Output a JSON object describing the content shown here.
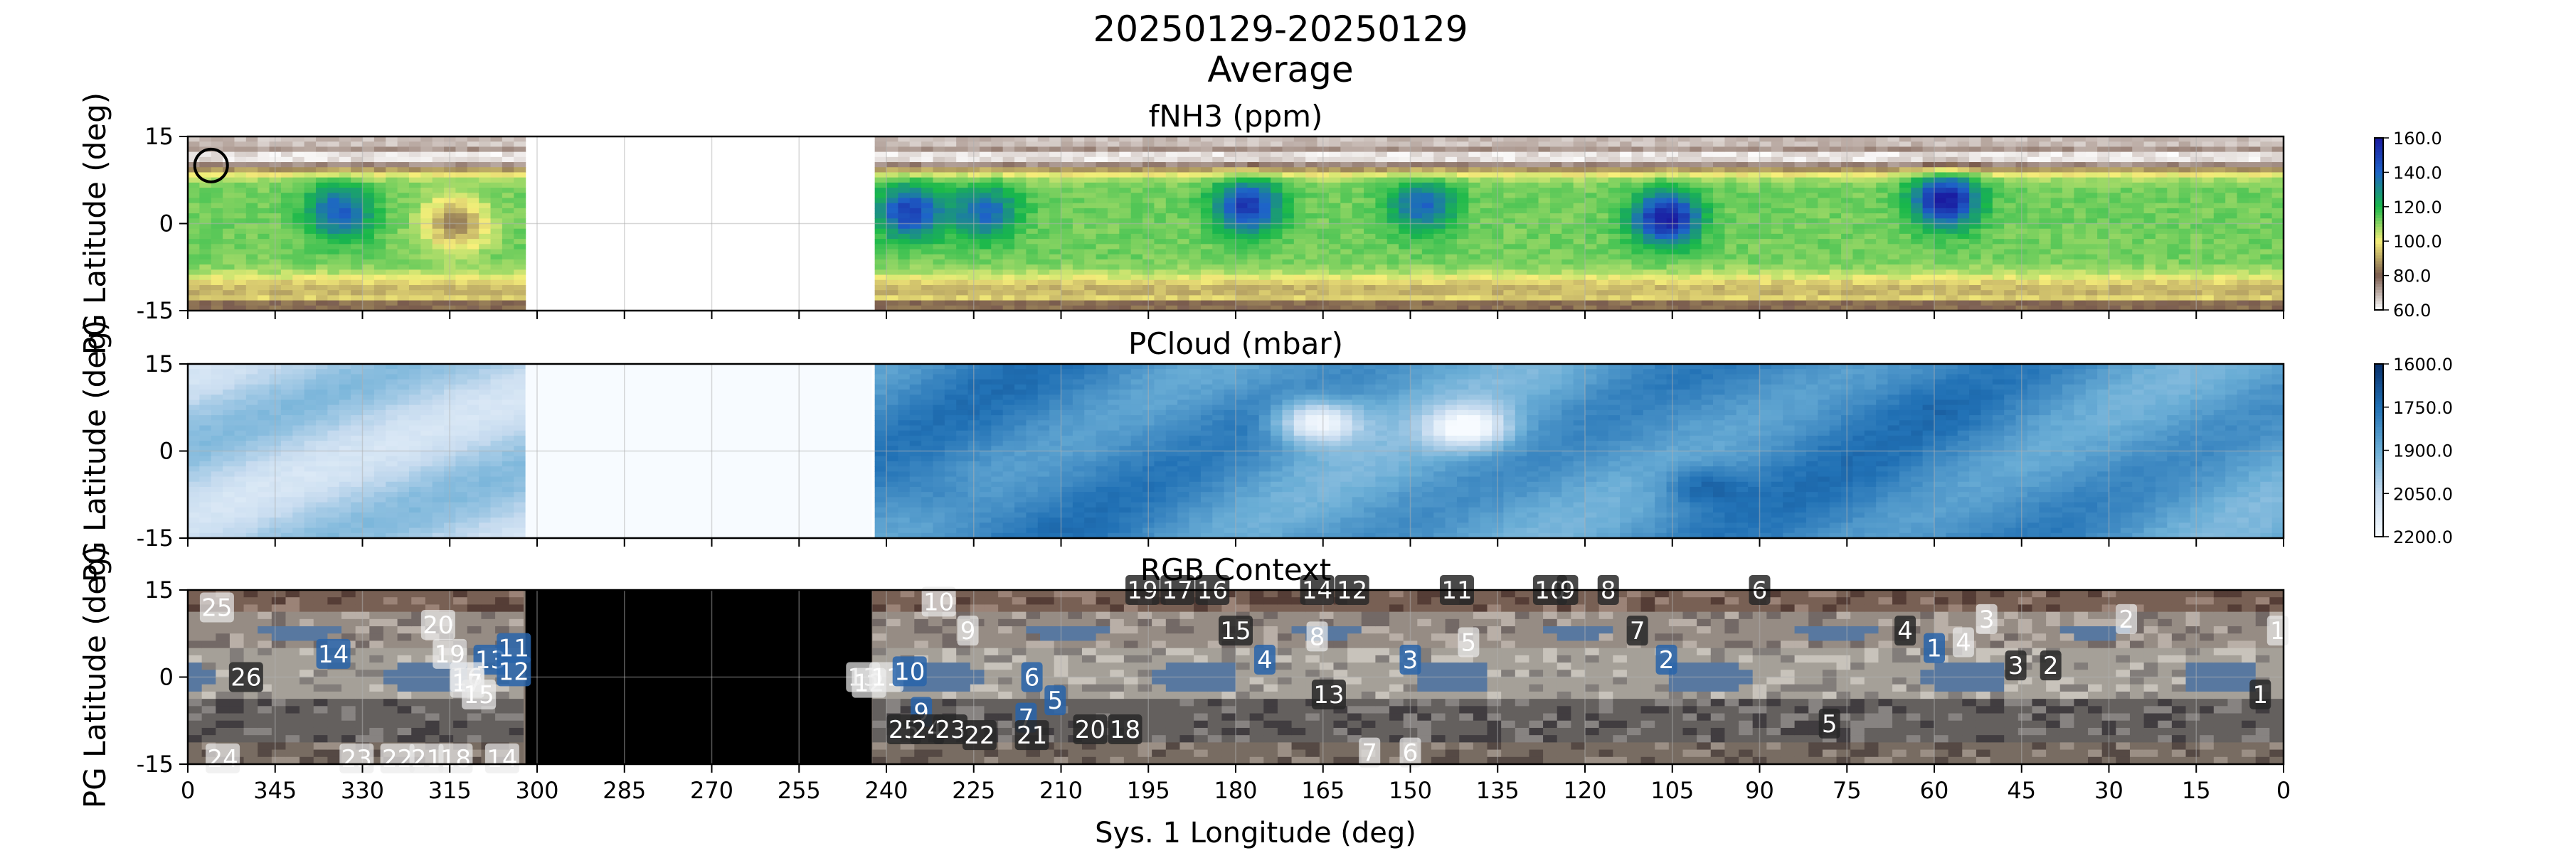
{
  "title": "20250129-20250129",
  "subtitle": "Average",
  "xlabel": "Sys. 1 Longitude (deg)",
  "chart_data": [
    {
      "type": "heatmap",
      "title": "fNH3 (ppm)",
      "ylabel": "PG Latitude (deg)",
      "xlim": [
        360,
        0
      ],
      "ylim": [
        -15,
        15
      ],
      "x_ticks": [
        "0",
        "345",
        "330",
        "315",
        "300",
        "285",
        "270",
        "255",
        "240",
        "225",
        "210",
        "195",
        "180",
        "165",
        "150",
        "135",
        "120",
        "105",
        "90",
        "75",
        "60",
        "45",
        "30",
        "15",
        "0"
      ],
      "y_ticks": [
        "15",
        "0",
        "-15"
      ],
      "colorbar_ticks": [
        "160.0",
        "140.0",
        "120.0",
        "100.0",
        "80.0",
        "60.0"
      ],
      "colorbar_range": [
        60,
        160
      ],
      "colormap": [
        "#ffffff",
        "#7a5c4e",
        "#f7ef7a",
        "#19b84a",
        "#1e64c8",
        "#1a1aa0"
      ],
      "no_data_longitudes": [
        242.5,
        302
      ],
      "grid": true,
      "marker": {
        "lon": 356,
        "lat": 10,
        "shape": "circle"
      },
      "bands": {
        "upper_lat": 11.5,
        "mid_lat": 0,
        "lower_lat": -11.5
      },
      "features": [
        {
          "lon": 334,
          "lat": 2,
          "level": 142
        },
        {
          "lon": 314,
          "lat": 0,
          "level": 85
        },
        {
          "lon": 236,
          "lat": 2,
          "level": 150
        },
        {
          "lon": 223,
          "lat": 2,
          "level": 140
        },
        {
          "lon": 178,
          "lat": 3,
          "level": 152
        },
        {
          "lon": 148,
          "lat": 3,
          "level": 140
        },
        {
          "lon": 106,
          "lat": 1,
          "level": 160
        },
        {
          "lon": 58,
          "lat": 4,
          "level": 160
        }
      ]
    },
    {
      "type": "heatmap",
      "title": "PCloud (mbar)",
      "ylabel": "PG Latitude (deg)",
      "xlim": [
        360,
        0
      ],
      "ylim": [
        -15,
        15
      ],
      "x_ticks": [
        "0",
        "345",
        "330",
        "315",
        "300",
        "285",
        "270",
        "255",
        "240",
        "225",
        "210",
        "195",
        "180",
        "165",
        "150",
        "135",
        "120",
        "105",
        "90",
        "75",
        "60",
        "45",
        "30",
        "15",
        "0"
      ],
      "y_ticks": [
        "15",
        "0",
        "-15"
      ],
      "colorbar_ticks": [
        "1600.0",
        "1750.0",
        "1900.0",
        "2050.0",
        "2200.0"
      ],
      "colorbar_range": [
        1600,
        2200
      ],
      "colormap": [
        "#f7fbff",
        "#c6dbef",
        "#6baed6",
        "#2171b5",
        "#08306b"
      ],
      "no_data_longitudes": [
        242.5,
        302
      ],
      "grid": true,
      "features": [
        {
          "lon": 178,
          "lat": 6,
          "level": 1980
        },
        {
          "lon": 166,
          "lat": 5,
          "level": 1600
        },
        {
          "lon": 140,
          "lat": 4,
          "level": 1620
        },
        {
          "lon": 106,
          "lat": 6,
          "level": 1950
        },
        {
          "lon": 58,
          "lat": 7,
          "level": 1980
        },
        {
          "lon": 100,
          "lat": -6,
          "level": 2080
        },
        {
          "lon": 230,
          "lat": -8,
          "level": 2000
        }
      ]
    },
    {
      "type": "heatmap",
      "title": "RGB Context",
      "ylabel": "PG Latitude (deg)",
      "xlim": [
        360,
        0
      ],
      "ylim": [
        -15,
        15
      ],
      "x_ticks": [
        "0",
        "345",
        "330",
        "315",
        "300",
        "285",
        "270",
        "255",
        "240",
        "225",
        "210",
        "195",
        "180",
        "165",
        "150",
        "135",
        "120",
        "105",
        "90",
        "75",
        "60",
        "45",
        "30",
        "15",
        "0"
      ],
      "y_ticks": [
        "15",
        "0",
        "-15"
      ],
      "no_data_longitudes": [
        242.5,
        302
      ],
      "grid": true,
      "labels": [
        {
          "text": "25",
          "lon": 355,
          "lat": 12,
          "style": "light"
        },
        {
          "text": "26",
          "lon": 350,
          "lat": 0,
          "style": "dark"
        },
        {
          "text": "14",
          "lon": 335,
          "lat": 4,
          "style": "blue"
        },
        {
          "text": "20",
          "lon": 317,
          "lat": 9,
          "style": "light"
        },
        {
          "text": "19",
          "lon": 315,
          "lat": 4,
          "style": "light"
        },
        {
          "text": "13",
          "lon": 308,
          "lat": 3,
          "style": "blue"
        },
        {
          "text": "11",
          "lon": 304,
          "lat": 5,
          "style": "blue"
        },
        {
          "text": "12",
          "lon": 304,
          "lat": 1,
          "style": "blue"
        },
        {
          "text": "16",
          "lon": 312,
          "lat": 0,
          "style": "light"
        },
        {
          "text": "17",
          "lon": 312,
          "lat": -1,
          "style": "light"
        },
        {
          "text": "15",
          "lon": 310,
          "lat": -3,
          "style": "light"
        },
        {
          "text": "24",
          "lon": 354,
          "lat": -14,
          "style": "light"
        },
        {
          "text": "23",
          "lon": 331,
          "lat": -14,
          "style": "light"
        },
        {
          "text": "22",
          "lon": 324,
          "lat": -14,
          "style": "light"
        },
        {
          "text": "21",
          "lon": 319,
          "lat": -14,
          "style": "light"
        },
        {
          "text": "18",
          "lon": 314,
          "lat": -14,
          "style": "light"
        },
        {
          "text": "14",
          "lon": 306,
          "lat": -14,
          "style": "light"
        },
        {
          "text": "10",
          "lon": 231,
          "lat": 13,
          "style": "light"
        },
        {
          "text": "9",
          "lon": 226,
          "lat": 8,
          "style": "light"
        },
        {
          "text": "13",
          "lon": 244,
          "lat": 0,
          "style": "light"
        },
        {
          "text": "12",
          "lon": 243,
          "lat": -1,
          "style": "light"
        },
        {
          "text": "11",
          "lon": 240,
          "lat": 0,
          "style": "light"
        },
        {
          "text": "10",
          "lon": 236,
          "lat": 1,
          "style": "blue"
        },
        {
          "text": "9",
          "lon": 234,
          "lat": -6,
          "style": "blue"
        },
        {
          "text": "25",
          "lon": 237,
          "lat": -9,
          "style": "dark"
        },
        {
          "text": "24",
          "lon": 233,
          "lat": -9,
          "style": "dark"
        },
        {
          "text": "23",
          "lon": 229,
          "lat": -9,
          "style": "dark"
        },
        {
          "text": "22",
          "lon": 224,
          "lat": -10,
          "style": "dark"
        },
        {
          "text": "6",
          "lon": 215,
          "lat": 0,
          "style": "blue"
        },
        {
          "text": "5",
          "lon": 211,
          "lat": -4,
          "style": "blue"
        },
        {
          "text": "7",
          "lon": 216,
          "lat": -7,
          "style": "blue"
        },
        {
          "text": "21",
          "lon": 215,
          "lat": -10,
          "style": "dark"
        },
        {
          "text": "20",
          "lon": 205,
          "lat": -9,
          "style": "dark"
        },
        {
          "text": "18",
          "lon": 199,
          "lat": -9,
          "style": "dark"
        },
        {
          "text": "19",
          "lon": 196,
          "lat": 15,
          "style": "dark"
        },
        {
          "text": "17",
          "lon": 190,
          "lat": 15,
          "style": "dark"
        },
        {
          "text": "16",
          "lon": 184,
          "lat": 15,
          "style": "dark"
        },
        {
          "text": "15",
          "lon": 180,
          "lat": 8,
          "style": "dark"
        },
        {
          "text": "4",
          "lon": 175,
          "lat": 3,
          "style": "blue"
        },
        {
          "text": "8",
          "lon": 166,
          "lat": 7,
          "style": "light"
        },
        {
          "text": "14",
          "lon": 166,
          "lat": 15,
          "style": "dark"
        },
        {
          "text": "12",
          "lon": 160,
          "lat": 15,
          "style": "dark"
        },
        {
          "text": "13",
          "lon": 164,
          "lat": -3,
          "style": "dark"
        },
        {
          "text": "7",
          "lon": 157,
          "lat": -13,
          "style": "light"
        },
        {
          "text": "6",
          "lon": 150,
          "lat": -13,
          "style": "light"
        },
        {
          "text": "3",
          "lon": 150,
          "lat": 3,
          "style": "blue"
        },
        {
          "text": "11",
          "lon": 142,
          "lat": 15,
          "style": "dark"
        },
        {
          "text": "5",
          "lon": 140,
          "lat": 6,
          "style": "light"
        },
        {
          "text": "10",
          "lon": 126,
          "lat": 15,
          "style": "dark"
        },
        {
          "text": "9",
          "lon": 123,
          "lat": 15,
          "style": "dark"
        },
        {
          "text": "8",
          "lon": 116,
          "lat": 15,
          "style": "dark"
        },
        {
          "text": "7",
          "lon": 111,
          "lat": 8,
          "style": "dark"
        },
        {
          "text": "2",
          "lon": 106,
          "lat": 3,
          "style": "blue"
        },
        {
          "text": "6",
          "lon": 90,
          "lat": 15,
          "style": "dark"
        },
        {
          "text": "5",
          "lon": 78,
          "lat": -8,
          "style": "dark"
        },
        {
          "text": "4",
          "lon": 65,
          "lat": 8,
          "style": "dark"
        },
        {
          "text": "1",
          "lon": 60,
          "lat": 5,
          "style": "blue"
        },
        {
          "text": "4",
          "lon": 55,
          "lat": 6,
          "style": "light"
        },
        {
          "text": "3",
          "lon": 51,
          "lat": 10,
          "style": "light"
        },
        {
          "text": "3",
          "lon": 46,
          "lat": 2,
          "style": "dark"
        },
        {
          "text": "2",
          "lon": 40,
          "lat": 2,
          "style": "dark"
        },
        {
          "text": "2",
          "lon": 27,
          "lat": 10,
          "style": "light"
        },
        {
          "text": "1",
          "lon": 4,
          "lat": -3,
          "style": "dark"
        },
        {
          "text": "1",
          "lon": 1,
          "lat": 8,
          "style": "light"
        }
      ]
    }
  ]
}
